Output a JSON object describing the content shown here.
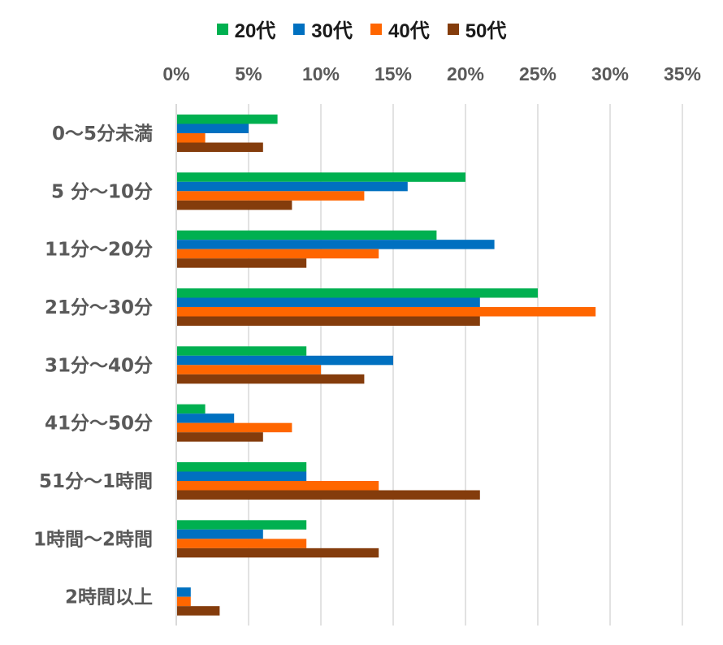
{
  "chart_data": {
    "type": "bar",
    "orientation": "horizontal",
    "title": "",
    "xlabel": "",
    "ylabel": "",
    "xlim": [
      0,
      35
    ],
    "ticks": [
      "0%",
      "5%",
      "10%",
      "15%",
      "20%",
      "25%",
      "30%",
      "35%"
    ],
    "tick_values": [
      0,
      5,
      10,
      15,
      20,
      25,
      30,
      35
    ],
    "legend_position": "top",
    "grid": true,
    "categories": [
      "0～5分未満",
      "5 分～10分",
      "11分～20分",
      "21分～30分",
      "31分～40分",
      "41分～50分",
      "51分～1時間",
      "1時間～2時間",
      "2時間以上"
    ],
    "series": [
      {
        "name": "20代",
        "color": "#00b050",
        "values": [
          7,
          20,
          18,
          25,
          9,
          2,
          9,
          9,
          0
        ]
      },
      {
        "name": "30代",
        "color": "#0070c0",
        "values": [
          5,
          16,
          22,
          21,
          15,
          4,
          9,
          6,
          1
        ]
      },
      {
        "name": "40代",
        "color": "#ff6600",
        "values": [
          2,
          13,
          14,
          29,
          10,
          8,
          14,
          9,
          1
        ]
      },
      {
        "name": "50代",
        "color": "#843c0c",
        "values": [
          6,
          8,
          9,
          21,
          13,
          6,
          21,
          14,
          3
        ]
      }
    ]
  }
}
